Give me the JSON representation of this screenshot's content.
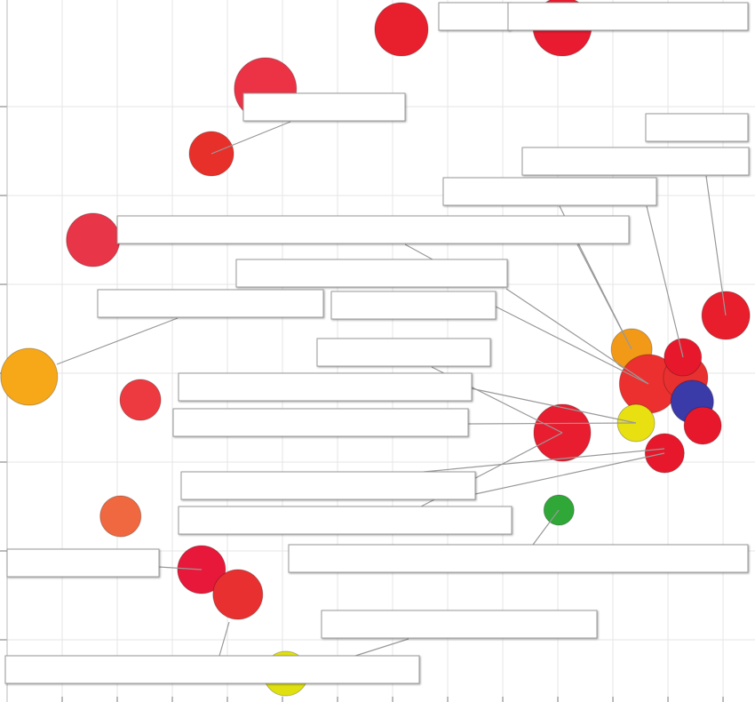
{
  "chart_data": {
    "type": "scatter",
    "xlim": [
      0,
      13.58
    ],
    "ylim": [
      0.3,
      8.2
    ],
    "xticks": [
      0,
      1,
      2,
      3,
      4,
      5,
      6,
      7,
      8,
      9,
      10,
      11,
      12,
      13
    ],
    "yticks": [
      1,
      2,
      3,
      4,
      5,
      6,
      7
    ],
    "grid": true,
    "series": [
      {
        "x": [
          7.16,
          10.08,
          4.69,
          3.71,
          1.56,
          13.05,
          0.4,
          2.42,
          11.34,
          11.65,
          12.32,
          12.44,
          12.27,
          10.08,
          11.42,
          12.63,
          11.94,
          2.06,
          10.02,
          3.53,
          4.19,
          5.06
        ],
        "values": [
          7.87,
          7.9,
          7.2,
          6.47,
          5.5,
          4.65,
          3.96,
          3.7,
          4.27,
          3.88,
          3.95,
          3.68,
          4.18,
          3.33,
          3.44,
          3.41,
          3.1,
          2.39,
          2.46,
          1.79,
          1.51,
          0.62
        ],
        "sizes": [
          30,
          33,
          35,
          25,
          30,
          27,
          32,
          23,
          23,
          33,
          25,
          24,
          21,
          32,
          21,
          21,
          22,
          23,
          17,
          27,
          28,
          25
        ],
        "colors": [
          "#e8202e",
          "#e81b30",
          "#ec3346",
          "#e8302a",
          "#e83548",
          "#e81e2c",
          "#f7a818",
          "#ec3a40",
          "#f29a18",
          "#ec3030",
          "#e83030",
          "#3a3aa8",
          "#e8182c",
          "#e81e30",
          "#e8e010",
          "#e8182c",
          "#e8182c",
          "#f06840",
          "#30a838",
          "#e8183a",
          "#e83030",
          "#e0e010"
        ]
      }
    ]
  }
}
